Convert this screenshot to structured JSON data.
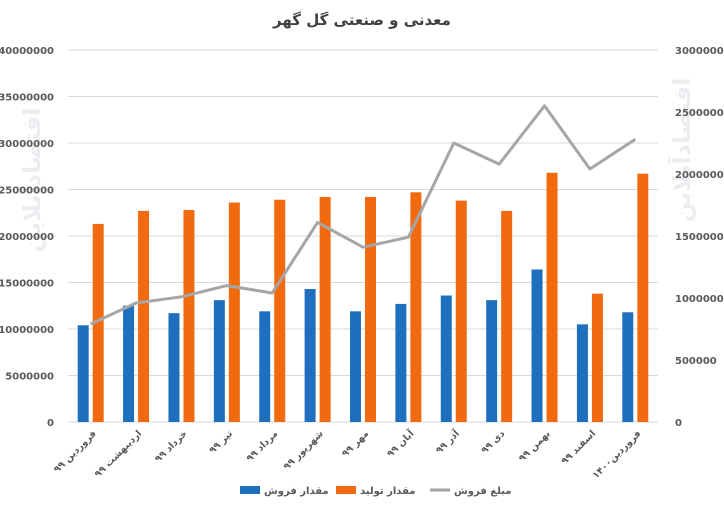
{
  "chart_data": {
    "type": "bar",
    "title": "معدنی و صنعتی گل گهر",
    "categories": [
      "فروردین ۹۹",
      "اردیبهشت ۹۹",
      "خرداد ۹۹",
      "تیر ۹۹",
      "مرداد ۹۹",
      "شهریور ۹۹",
      "مهر ۹۹",
      "آبان ۹۹",
      "آذر ۹۹",
      "دی ۹۹",
      "بهمن ۹۹",
      "اسفند ۹۹",
      "فروردین۱۴۰۰"
    ],
    "series": [
      {
        "name": "مقدار فروش",
        "type": "bar",
        "axis": "left",
        "color": "#1f6fbf",
        "values": [
          10400000,
          12500000,
          11700000,
          13100000,
          11900000,
          14300000,
          11900000,
          12700000,
          13600000,
          13100000,
          16400000,
          10500000,
          11800000
        ]
      },
      {
        "name": "مقدار تولید",
        "type": "bar",
        "axis": "left",
        "color": "#f26a10",
        "values": [
          21300000,
          22700000,
          22800000,
          23600000,
          23900000,
          24200000,
          24200000,
          24700000,
          23800000,
          22700000,
          26800000,
          13800000,
          26700000
        ]
      },
      {
        "name": "مبلغ فروش",
        "type": "line",
        "axis": "right",
        "color": "#a6a6a6",
        "values": [
          790000,
          960000,
          1010000,
          1100000,
          1040000,
          1610000,
          1410000,
          1490000,
          2250000,
          2080000,
          2550000,
          2040000,
          2280000
        ]
      }
    ],
    "y_left": {
      "min": 0,
      "max": 40000000,
      "tick_labels": [
        "0",
        "5000000",
        "10000000",
        "15000000",
        "20000000",
        "25000000",
        "30000000",
        "35000000",
        "40000000"
      ]
    },
    "y_right": {
      "min": 0,
      "max": 3000000,
      "tick_labels": [
        "0",
        "500000",
        "1000000",
        "1500000",
        "2000000",
        "2500000",
        "3000000"
      ]
    },
    "grid": true,
    "legend": "bottom"
  },
  "watermark": "اقتصادآنلاین"
}
